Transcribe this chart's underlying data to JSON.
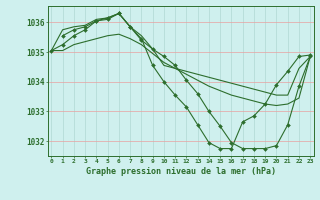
{
  "line1": {
    "x": [
      0,
      1,
      2,
      3,
      4,
      5,
      6,
      7,
      8,
      9,
      10,
      11,
      12,
      13,
      14,
      15,
      16,
      17,
      18,
      19,
      20,
      21,
      22,
      23
    ],
    "y": [
      1035.05,
      1035.25,
      1035.55,
      1035.75,
      1036.05,
      1036.1,
      1036.3,
      1035.85,
      1035.4,
      1035.1,
      1034.85,
      1034.55,
      1034.05,
      1033.6,
      1033.0,
      1032.5,
      1031.95,
      1031.75,
      1031.75,
      1031.75,
      1031.85,
      1032.55,
      1033.85,
      1034.85
    ],
    "marker": true
  },
  "line2": {
    "x": [
      0,
      1,
      2,
      3,
      4,
      5,
      6,
      7,
      8,
      9,
      10,
      11,
      12,
      13,
      14,
      15,
      16,
      17,
      18,
      19,
      20,
      21,
      22,
      23
    ],
    "y": [
      1035.05,
      1035.75,
      1035.85,
      1035.9,
      1036.1,
      1036.15,
      1036.3,
      1035.85,
      1035.55,
      1035.1,
      1034.55,
      1034.45,
      1034.35,
      1034.25,
      1034.15,
      1034.05,
      1033.95,
      1033.85,
      1033.75,
      1033.65,
      1033.55,
      1033.55,
      1034.45,
      1034.85
    ],
    "marker": false
  },
  "line3": {
    "x": [
      1,
      2,
      3,
      4,
      5,
      6,
      7,
      8,
      9,
      10,
      11,
      12,
      13,
      14,
      15,
      16,
      17,
      18,
      19,
      20,
      21,
      22,
      23
    ],
    "y": [
      1035.55,
      1035.75,
      1035.85,
      1036.05,
      1036.15,
      1036.3,
      1035.85,
      1035.45,
      1034.55,
      1034.0,
      1033.55,
      1033.15,
      1032.55,
      1031.95,
      1031.75,
      1031.75,
      1032.65,
      1032.85,
      1033.25,
      1033.9,
      1034.35,
      1034.85,
      1034.9
    ],
    "marker": true
  },
  "line4": {
    "x": [
      0,
      1,
      2,
      3,
      4,
      5,
      6,
      7,
      8,
      9,
      10,
      11,
      12,
      13,
      14,
      15,
      16,
      17,
      18,
      19,
      20,
      21,
      22,
      23
    ],
    "y": [
      1035.05,
      1035.05,
      1035.25,
      1035.35,
      1035.45,
      1035.55,
      1035.6,
      1035.45,
      1035.25,
      1034.95,
      1034.65,
      1034.45,
      1034.25,
      1034.05,
      1033.85,
      1033.7,
      1033.55,
      1033.45,
      1033.35,
      1033.25,
      1033.2,
      1033.25,
      1033.45,
      1034.85
    ],
    "marker": false
  },
  "xlim": [
    -0.3,
    23.3
  ],
  "ylim": [
    1031.5,
    1036.55
  ],
  "yticks": [
    1032,
    1033,
    1034,
    1035,
    1036
  ],
  "xticks": [
    0,
    1,
    2,
    3,
    4,
    5,
    6,
    7,
    8,
    9,
    10,
    11,
    12,
    13,
    14,
    15,
    16,
    17,
    18,
    19,
    20,
    21,
    22,
    23
  ],
  "xtick_labels": [
    "0",
    "1",
    "2",
    "3",
    "4",
    "5",
    "6",
    "7",
    "8",
    "9",
    "10",
    "11",
    "12",
    "13",
    "14",
    "15",
    "16",
    "17",
    "18",
    "19",
    "20",
    "21",
    "22",
    "23"
  ],
  "xlabel": "Graphe pression niveau de la mer (hPa)",
  "line_color": "#2d6e2d",
  "bg_color": "#cff0ee",
  "grid_color_h": "#e8a0a0",
  "grid_color_v": "#b0d8d4",
  "marker": "D",
  "markersize": 2.0,
  "linewidth": 0.8
}
